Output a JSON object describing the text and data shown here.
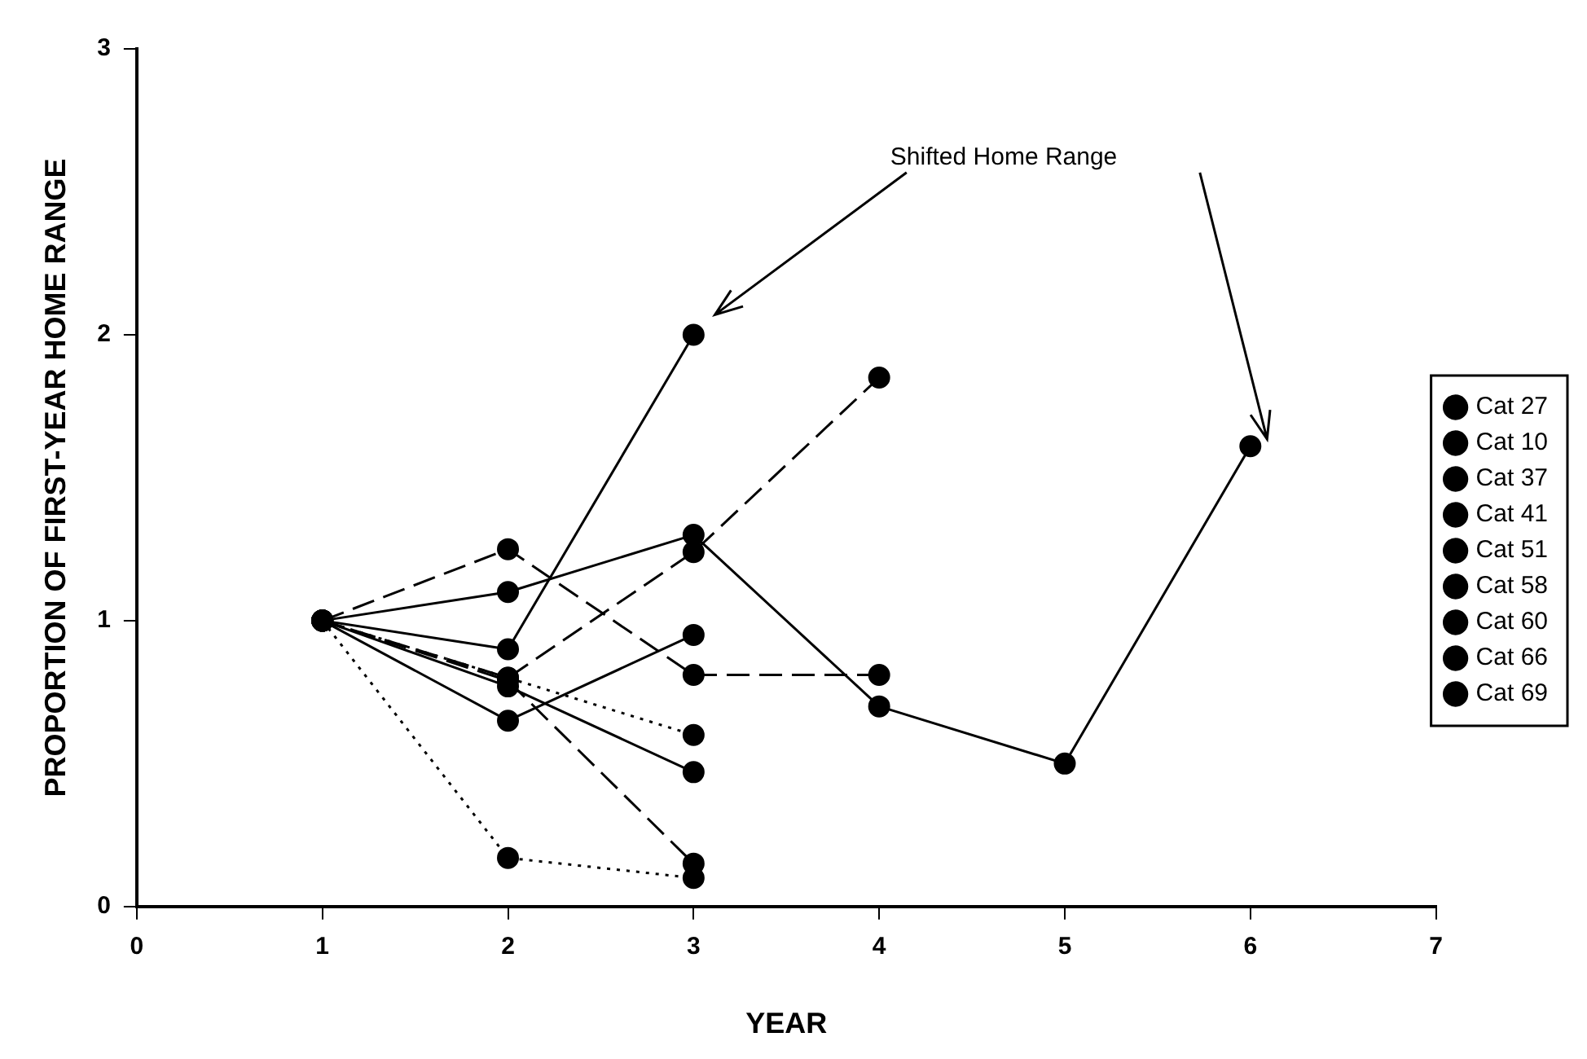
{
  "chart_data": {
    "type": "line",
    "xlabel": "YEAR",
    "ylabel": "PROPORTION OF FIRST-YEAR HOME RANGE",
    "xlim": [
      0,
      7
    ],
    "xticks": [
      0,
      1,
      2,
      3,
      4,
      5,
      6,
      7
    ],
    "ylim": [
      0,
      3
    ],
    "yticks": [
      0,
      1,
      2,
      3
    ],
    "grid": false,
    "legend": "right",
    "marker": "circle",
    "annotations": [
      "Shifted Home Range"
    ],
    "series": [
      {
        "name": "Cat 27",
        "color": "#000000",
        "line_style": "solid",
        "x": [
          1,
          2,
          3,
          4,
          5,
          6
        ],
        "values": [
          1,
          1.1,
          1.3,
          0.7,
          0.5,
          1.61
        ]
      },
      {
        "name": "Cat 10",
        "color": "#000000",
        "line_style": "dotted",
        "x": [
          1,
          2,
          3
        ],
        "values": [
          1,
          0.17,
          0.1
        ]
      },
      {
        "name": "Cat 37",
        "color": "#000000",
        "line_style": "solid",
        "x": [
          1,
          2,
          3
        ],
        "values": [
          1,
          0.77,
          0.47
        ]
      },
      {
        "name": "Cat 41",
        "color": "#000000",
        "line_style": "dashed",
        "x": [
          1,
          2,
          3,
          4
        ],
        "values": [
          1,
          1.25,
          0.81,
          0.81
        ]
      },
      {
        "name": "Cat 51",
        "color": "#000000",
        "line_style": "solid",
        "x": [
          1,
          2,
          3
        ],
        "values": [
          1,
          0.65,
          0.95
        ]
      },
      {
        "name": "Cat 58",
        "color": "#000000",
        "line_style": "dashed",
        "x": [
          1,
          2,
          3
        ],
        "values": [
          1,
          0.79,
          0.15
        ]
      },
      {
        "name": "Cat 60",
        "color": "#000000",
        "line_style": "dashed",
        "x": [
          1,
          2,
          3,
          4
        ],
        "values": [
          1,
          0.8,
          1.24,
          1.85
        ]
      },
      {
        "name": "Cat 66",
        "color": "#000000",
        "line_style": "solid",
        "x": [
          1,
          2,
          3
        ],
        "values": [
          1,
          0.9,
          2.0
        ]
      },
      {
        "name": "Cat 69",
        "color": "#000000",
        "line_style": "dotted",
        "x": [
          1,
          2,
          3
        ],
        "values": [
          1,
          0.8,
          0.6
        ]
      }
    ]
  }
}
